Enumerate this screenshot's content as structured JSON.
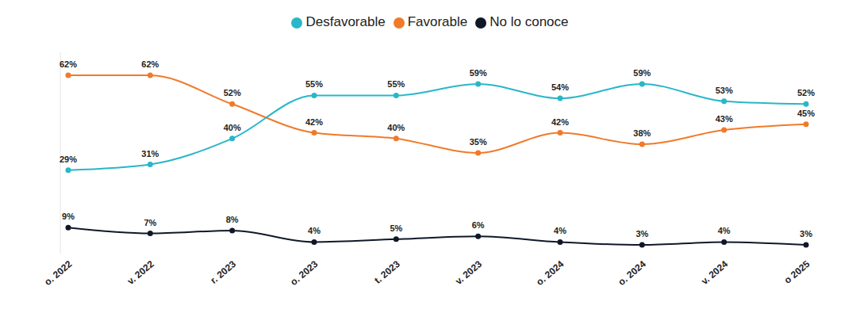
{
  "chart_data": {
    "type": "line",
    "categories": [
      "o. 2022",
      "v. 2022",
      "r. 2023",
      "o. 2023",
      "t. 2023",
      "v. 2023",
      "o. 2024",
      "o. 2024",
      "v. 2024",
      "o 2025"
    ],
    "series": [
      {
        "name": "Favorable",
        "color": "#f07a2a",
        "values": [
          62,
          62,
          52,
          42,
          40,
          35,
          42,
          38,
          43,
          45
        ],
        "value_labels": [
          "62%",
          "62%",
          "52%",
          "42%",
          "40%",
          "35%",
          "42%",
          "38%",
          "43%",
          "45%"
        ]
      },
      {
        "name": "Desfavorable",
        "color": "#29b6c9",
        "values": [
          29,
          31,
          40,
          55,
          55,
          59,
          54,
          59,
          53,
          52
        ],
        "value_labels": [
          "29%",
          "31%",
          "40%",
          "55%",
          "55%",
          "59%",
          "54%",
          "59%",
          "53%",
          "52%"
        ]
      },
      {
        "name": "No lo conoce",
        "color": "#101828",
        "values": [
          9,
          7,
          8,
          4,
          5,
          6,
          4,
          3,
          4,
          3
        ],
        "value_labels": [
          "9%",
          "7%",
          "8%",
          "4%",
          "5%",
          "6%",
          "4%",
          "3%",
          "4%",
          "3%"
        ]
      }
    ],
    "ylim": [
      0,
      70
    ],
    "data_labels": true,
    "legend": "top",
    "tick_labels": "x",
    "marker": "circle",
    "line_style": "solid"
  }
}
